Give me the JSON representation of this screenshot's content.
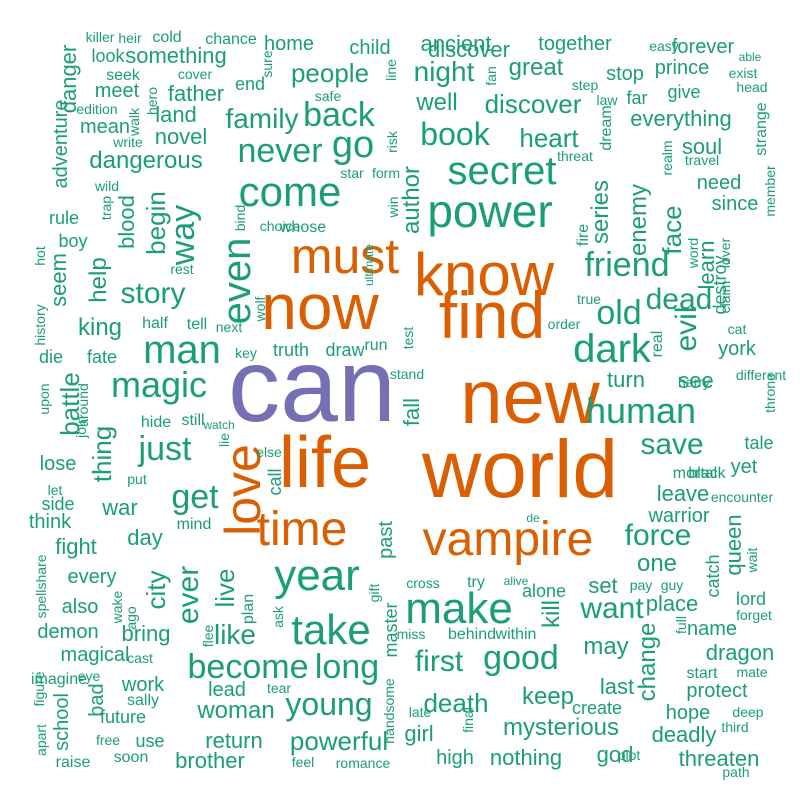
{
  "colors": {
    "teal": "#1b9e77",
    "orange": "#d95f02",
    "purple": "#7570b3"
  },
  "words": [
    {
      "text": "can",
      "color": "purple"
    },
    {
      "text": "world",
      "color": "orange"
    },
    {
      "text": "new",
      "color": "orange"
    },
    {
      "text": "life",
      "color": "orange"
    },
    {
      "text": "find",
      "color": "orange"
    },
    {
      "text": "now",
      "color": "orange"
    },
    {
      "text": "know",
      "color": "orange"
    },
    {
      "text": "must",
      "color": "orange"
    },
    {
      "text": "love",
      "color": "orange"
    },
    {
      "text": "vampire",
      "color": "orange"
    },
    {
      "text": "time",
      "color": "orange"
    },
    {
      "text": "year",
      "color": "teal"
    },
    {
      "text": "make",
      "color": "teal"
    },
    {
      "text": "take",
      "color": "teal"
    },
    {
      "text": "power",
      "color": "teal"
    },
    {
      "text": "secret",
      "color": "teal"
    },
    {
      "text": "come",
      "color": "teal"
    },
    {
      "text": "dark",
      "color": "teal"
    },
    {
      "text": "even",
      "color": "teal"
    },
    {
      "text": "man",
      "color": "teal"
    },
    {
      "text": "magic",
      "color": "teal"
    },
    {
      "text": "human",
      "color": "teal"
    },
    {
      "text": "become",
      "color": "teal"
    },
    {
      "text": "good",
      "color": "teal"
    },
    {
      "text": "friend",
      "color": "teal"
    },
    {
      "text": "old",
      "color": "teal"
    },
    {
      "text": "go",
      "color": "teal"
    },
    {
      "text": "never",
      "color": "teal"
    },
    {
      "text": "book",
      "color": "teal"
    },
    {
      "text": "back",
      "color": "teal"
    },
    {
      "text": "way",
      "color": "teal"
    },
    {
      "text": "just",
      "color": "teal"
    },
    {
      "text": "get",
      "color": "teal"
    },
    {
      "text": "long",
      "color": "teal"
    },
    {
      "text": "young",
      "color": "teal"
    },
    {
      "text": "death",
      "color": "teal"
    },
    {
      "text": "first",
      "color": "teal"
    },
    {
      "text": "story",
      "color": "teal"
    },
    {
      "text": "evil",
      "color": "teal"
    },
    {
      "text": "dead",
      "color": "teal"
    },
    {
      "text": "save",
      "color": "teal"
    },
    {
      "text": "want",
      "color": "teal"
    },
    {
      "text": "force",
      "color": "teal"
    },
    {
      "text": "people",
      "color": "teal"
    },
    {
      "text": "night",
      "color": "teal"
    },
    {
      "text": "discover",
      "color": "teal"
    },
    {
      "text": "heart",
      "color": "teal"
    },
    {
      "text": "family",
      "color": "teal"
    },
    {
      "text": "powerful",
      "color": "teal"
    },
    {
      "text": "woman",
      "color": "teal"
    },
    {
      "text": "mysterious",
      "color": "teal"
    },
    {
      "text": "dangerous",
      "color": "teal"
    },
    {
      "text": "like",
      "color": "teal"
    },
    {
      "text": "ever",
      "color": "teal"
    },
    {
      "text": "live",
      "color": "teal"
    },
    {
      "text": "series",
      "color": "teal"
    },
    {
      "text": "enemy",
      "color": "teal"
    },
    {
      "text": "face",
      "color": "teal"
    },
    {
      "text": "everything",
      "color": "teal"
    },
    {
      "text": "soul",
      "color": "teal"
    },
    {
      "text": "ancient",
      "color": "teal"
    },
    {
      "text": "great",
      "color": "teal"
    },
    {
      "text": "well",
      "color": "teal"
    },
    {
      "text": "author",
      "color": "teal"
    },
    {
      "text": "novel",
      "color": "teal"
    },
    {
      "text": "land",
      "color": "teal"
    },
    {
      "text": "father",
      "color": "teal"
    },
    {
      "text": "something",
      "color": "teal"
    },
    {
      "text": "home",
      "color": "teal"
    },
    {
      "text": "child",
      "color": "teal"
    },
    {
      "text": "together",
      "color": "teal"
    },
    {
      "text": "forever",
      "color": "teal"
    },
    {
      "text": "stop",
      "color": "teal"
    },
    {
      "text": "prince",
      "color": "teal"
    },
    {
      "text": "give",
      "color": "teal"
    },
    {
      "text": "far",
      "color": "teal"
    },
    {
      "text": "discover",
      "color": "teal"
    },
    {
      "text": "king",
      "color": "teal"
    },
    {
      "text": "help",
      "color": "teal"
    },
    {
      "text": "blood",
      "color": "teal"
    },
    {
      "text": "begin",
      "color": "teal"
    },
    {
      "text": "seem",
      "color": "teal"
    },
    {
      "text": "thing",
      "color": "teal"
    },
    {
      "text": "battle",
      "color": "teal"
    },
    {
      "text": "war",
      "color": "teal"
    },
    {
      "text": "day",
      "color": "teal"
    },
    {
      "text": "city",
      "color": "teal"
    },
    {
      "text": "fight",
      "color": "teal"
    },
    {
      "text": "every",
      "color": "teal"
    },
    {
      "text": "also",
      "color": "teal"
    },
    {
      "text": "demon",
      "color": "teal"
    },
    {
      "text": "magical",
      "color": "teal"
    },
    {
      "text": "bring",
      "color": "teal"
    },
    {
      "text": "work",
      "color": "teal"
    },
    {
      "text": "lead",
      "color": "teal"
    },
    {
      "text": "return",
      "color": "teal"
    },
    {
      "text": "brother",
      "color": "teal"
    },
    {
      "text": "keep",
      "color": "teal"
    },
    {
      "text": "girl",
      "color": "teal"
    },
    {
      "text": "nothing",
      "color": "teal"
    },
    {
      "text": "high",
      "color": "teal"
    },
    {
      "text": "god",
      "color": "teal"
    },
    {
      "text": "threaten",
      "color": "teal"
    },
    {
      "text": "deadly",
      "color": "teal"
    },
    {
      "text": "hope",
      "color": "teal"
    },
    {
      "text": "protect",
      "color": "teal"
    },
    {
      "text": "last",
      "color": "teal"
    },
    {
      "text": "change",
      "color": "teal"
    },
    {
      "text": "may",
      "color": "teal"
    },
    {
      "text": "dragon",
      "color": "teal"
    },
    {
      "text": "name",
      "color": "teal"
    },
    {
      "text": "place",
      "color": "teal"
    },
    {
      "text": "lord",
      "color": "teal"
    },
    {
      "text": "queen",
      "color": "teal"
    },
    {
      "text": "one",
      "color": "teal"
    },
    {
      "text": "set",
      "color": "teal"
    },
    {
      "text": "kill",
      "color": "teal"
    },
    {
      "text": "leave",
      "color": "teal"
    },
    {
      "text": "warrior",
      "color": "teal"
    },
    {
      "text": "yet",
      "color": "teal"
    },
    {
      "text": "tale",
      "color": "teal"
    },
    {
      "text": "see",
      "color": "teal"
    },
    {
      "text": "turn",
      "color": "teal"
    },
    {
      "text": "york",
      "color": "teal"
    },
    {
      "text": "learn",
      "color": "teal"
    },
    {
      "text": "need",
      "color": "teal"
    },
    {
      "text": "since",
      "color": "teal"
    },
    {
      "text": "destroy",
      "color": "teal"
    },
    {
      "text": "strange",
      "color": "teal"
    },
    {
      "text": "fall",
      "color": "teal"
    },
    {
      "text": "past",
      "color": "teal"
    },
    {
      "text": "master",
      "color": "teal"
    },
    {
      "text": "plan",
      "color": "teal"
    },
    {
      "text": "call",
      "color": "teal"
    },
    {
      "text": "truth",
      "color": "teal"
    },
    {
      "text": "draw",
      "color": "teal"
    },
    {
      "text": "run",
      "color": "teal"
    },
    {
      "text": "fate",
      "color": "teal"
    },
    {
      "text": "die",
      "color": "teal"
    },
    {
      "text": "half",
      "color": "teal"
    },
    {
      "text": "tell",
      "color": "teal"
    },
    {
      "text": "hide",
      "color": "teal"
    },
    {
      "text": "still",
      "color": "teal"
    },
    {
      "text": "lose",
      "color": "teal"
    },
    {
      "text": "side",
      "color": "teal"
    },
    {
      "text": "think",
      "color": "teal"
    },
    {
      "text": "mean",
      "color": "teal"
    },
    {
      "text": "meet",
      "color": "teal"
    },
    {
      "text": "look",
      "color": "teal"
    },
    {
      "text": "adventure",
      "color": "teal"
    },
    {
      "text": "danger",
      "color": "teal"
    },
    {
      "text": "end",
      "color": "teal"
    },
    {
      "text": "whose",
      "color": "teal"
    },
    {
      "text": "choice",
      "color": "teal"
    },
    {
      "text": "rule",
      "color": "teal"
    },
    {
      "text": "boy",
      "color": "teal"
    },
    {
      "text": "bad",
      "color": "teal"
    },
    {
      "text": "school",
      "color": "teal"
    },
    {
      "text": "future",
      "color": "teal"
    },
    {
      "text": "use",
      "color": "teal"
    },
    {
      "text": "soon",
      "color": "teal"
    },
    {
      "text": "alone",
      "color": "teal"
    },
    {
      "text": "try",
      "color": "teal"
    },
    {
      "text": "behind",
      "color": "teal"
    },
    {
      "text": "within",
      "color": "teal"
    },
    {
      "text": "create",
      "color": "teal"
    },
    {
      "text": "start",
      "color": "teal"
    },
    {
      "text": "catch",
      "color": "teal"
    },
    {
      "text": "mortal",
      "color": "teal"
    },
    {
      "text": "black",
      "color": "teal"
    },
    {
      "text": "real",
      "color": "teal"
    },
    {
      "text": "true",
      "color": "teal"
    },
    {
      "text": "order",
      "color": "teal"
    },
    {
      "text": "fire",
      "color": "teal"
    },
    {
      "text": "dream",
      "color": "teal"
    },
    {
      "text": "feel",
      "color": "teal"
    },
    {
      "text": "romance",
      "color": "teal"
    },
    {
      "text": "raise",
      "color": "teal"
    },
    {
      "text": "free",
      "color": "teal"
    },
    {
      "text": "sally",
      "color": "teal"
    },
    {
      "text": "imagine",
      "color": "teal"
    },
    {
      "text": "eye",
      "color": "teal"
    },
    {
      "text": "cast",
      "color": "teal"
    },
    {
      "text": "ago",
      "color": "teal"
    },
    {
      "text": "mind",
      "color": "teal"
    },
    {
      "text": "put",
      "color": "teal"
    },
    {
      "text": "let",
      "color": "teal"
    },
    {
      "text": "upon",
      "color": "teal"
    },
    {
      "text": "around",
      "color": "teal"
    },
    {
      "text": "join",
      "color": "teal"
    },
    {
      "text": "key",
      "color": "teal"
    },
    {
      "text": "wolf",
      "color": "teal"
    },
    {
      "text": "next",
      "color": "teal"
    },
    {
      "text": "rest",
      "color": "teal"
    },
    {
      "text": "hot",
      "color": "teal"
    },
    {
      "text": "history",
      "color": "teal"
    },
    {
      "text": "share",
      "color": "teal"
    },
    {
      "text": "spell",
      "color": "teal"
    },
    {
      "text": "figure",
      "color": "teal"
    },
    {
      "text": "apart",
      "color": "teal"
    },
    {
      "text": "wake",
      "color": "teal"
    },
    {
      "text": "flee",
      "color": "teal"
    },
    {
      "text": "ask",
      "color": "teal"
    },
    {
      "text": "tear",
      "color": "teal"
    },
    {
      "text": "late",
      "color": "teal"
    },
    {
      "text": "handsome",
      "color": "teal"
    },
    {
      "text": "final",
      "color": "teal"
    },
    {
      "text": "gift",
      "color": "teal"
    },
    {
      "text": "cross",
      "color": "teal"
    },
    {
      "text": "alive",
      "color": "teal"
    },
    {
      "text": "pay",
      "color": "teal"
    },
    {
      "text": "guy",
      "color": "teal"
    },
    {
      "text": "miss",
      "color": "teal"
    },
    {
      "text": "plot",
      "color": "teal"
    },
    {
      "text": "path",
      "color": "teal"
    },
    {
      "text": "third",
      "color": "teal"
    },
    {
      "text": "deep",
      "color": "teal"
    },
    {
      "text": "mate",
      "color": "teal"
    },
    {
      "text": "forget",
      "color": "teal"
    },
    {
      "text": "wait",
      "color": "teal"
    },
    {
      "text": "encounter",
      "color": "teal"
    },
    {
      "text": "full",
      "color": "teal"
    },
    {
      "text": "throne",
      "color": "teal"
    },
    {
      "text": "different",
      "color": "teal"
    },
    {
      "text": "harry",
      "color": "teal"
    },
    {
      "text": "cat",
      "color": "teal"
    },
    {
      "text": "claim",
      "color": "teal"
    },
    {
      "text": "lover",
      "color": "teal"
    },
    {
      "text": "word",
      "color": "teal"
    },
    {
      "text": "member",
      "color": "teal"
    },
    {
      "text": "travel",
      "color": "teal"
    },
    {
      "text": "realm",
      "color": "teal"
    },
    {
      "text": "threat",
      "color": "teal"
    },
    {
      "text": "law",
      "color": "teal"
    },
    {
      "text": "step",
      "color": "teal"
    },
    {
      "text": "fan",
      "color": "teal"
    },
    {
      "text": "able",
      "color": "teal"
    },
    {
      "text": "exist",
      "color": "teal"
    },
    {
      "text": "head",
      "color": "teal"
    },
    {
      "text": "easy",
      "color": "teal"
    },
    {
      "text": "killer",
      "color": "teal"
    },
    {
      "text": "heir",
      "color": "teal"
    },
    {
      "text": "cold",
      "color": "teal"
    },
    {
      "text": "chance",
      "color": "teal"
    },
    {
      "text": "seek",
      "color": "teal"
    },
    {
      "text": "cover",
      "color": "teal"
    },
    {
      "text": "sure",
      "color": "teal"
    },
    {
      "text": "line",
      "color": "teal"
    },
    {
      "text": "safe",
      "color": "teal"
    },
    {
      "text": "edition",
      "color": "teal"
    },
    {
      "text": "hero",
      "color": "teal"
    },
    {
      "text": "write",
      "color": "teal"
    },
    {
      "text": "walk",
      "color": "teal"
    },
    {
      "text": "risk",
      "color": "teal"
    },
    {
      "text": "star",
      "color": "teal"
    },
    {
      "text": "form",
      "color": "teal"
    },
    {
      "text": "wild",
      "color": "teal"
    },
    {
      "text": "trap",
      "color": "teal"
    },
    {
      "text": "bind",
      "color": "teal"
    },
    {
      "text": "win",
      "color": "teal"
    },
    {
      "text": "ultimate",
      "color": "teal"
    },
    {
      "text": "test",
      "color": "teal"
    },
    {
      "text": "stand",
      "color": "teal"
    },
    {
      "text": "lie",
      "color": "teal"
    },
    {
      "text": "watch",
      "color": "teal"
    },
    {
      "text": "de",
      "color": "teal"
    },
    {
      "text": "else",
      "color": "teal"
    },
    {
      "text": "fill",
      "color": "teal"
    }
  ]
}
